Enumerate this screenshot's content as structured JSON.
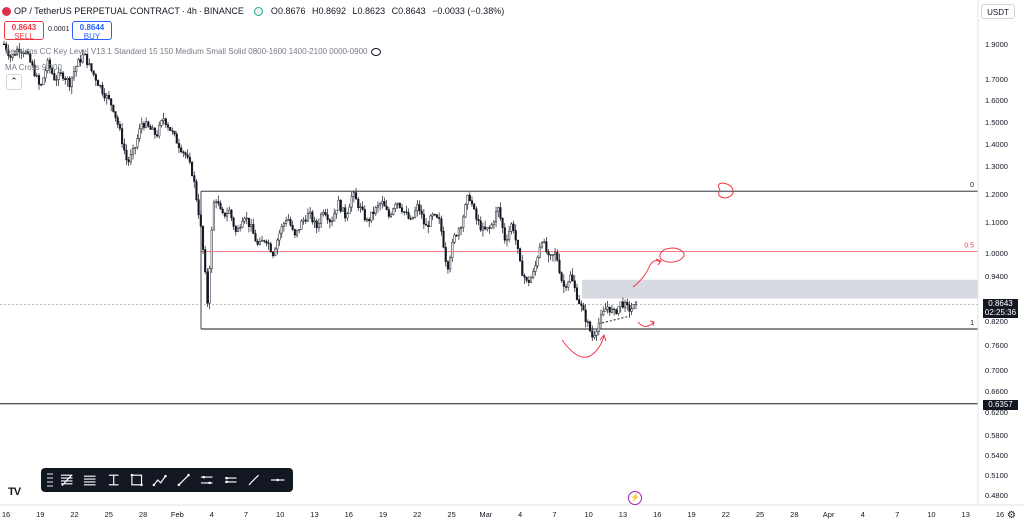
{
  "header": {
    "symbol": "OP / TetherUS PERPETUAL CONTRACT",
    "dot1": "·",
    "interval": "4h",
    "dot2": "·",
    "exchange": "BINANCE",
    "o_label": "O",
    "o": "0.8676",
    "h_label": "H",
    "h": "0.8692",
    "l_label": "L",
    "l": "0.8623",
    "c_label": "C",
    "c": "0.8643",
    "change": "−0.0033 (−0.38%)"
  },
  "trade": {
    "sell_price": "0.8643",
    "sell_label": "SELL",
    "spread": "0.0001",
    "buy_price": "0.8644",
    "buy_label": "BUY"
  },
  "indicators": {
    "line1": "Sessions CC Key Level V13.1 Standard 15 150 Medium Small Solid 0800-1600 1400-2100 0000-0900",
    "line2": "MA Cross 9 200"
  },
  "currency": "USDT",
  "last_price": {
    "value": "0.8643",
    "countdown": "02:25:36"
  },
  "marked_price": "0.6357",
  "colors": {
    "candle": "#131722",
    "fib_mid": "#f23645",
    "drawing": "#f23645",
    "zone": "#d1d4dc"
  },
  "chart_data": {
    "type": "candlestick",
    "title": "",
    "xlabel": "",
    "ylabel": "",
    "ylim": [
      0.46,
      2.0
    ],
    "y_ticks": [
      "1.9000",
      "1.7000",
      "1.6000",
      "1.5000",
      "1.4000",
      "1.3000",
      "1.2000",
      "1.1000",
      "1.0000",
      "0.9400",
      "0.8200",
      "0.7600",
      "0.7000",
      "0.6600",
      "0.6200",
      "0.5800",
      "0.5400",
      "0.5100",
      "0.4800"
    ],
    "y_tick_values": [
      1.9,
      1.7,
      1.6,
      1.5,
      1.4,
      1.3,
      1.2,
      1.1,
      1.0,
      0.94,
      0.82,
      0.76,
      0.7,
      0.66,
      0.62,
      0.58,
      0.54,
      0.51,
      0.48
    ],
    "x_ticks": [
      "16",
      "19",
      "22",
      "25",
      "28",
      "Feb",
      "4",
      "7",
      "10",
      "13",
      "16",
      "19",
      "22",
      "25",
      "Mar",
      "4",
      "7",
      "10",
      "13",
      "16",
      "19",
      "22",
      "25",
      "28",
      "Apr",
      "4",
      "7",
      "10",
      "13",
      "16"
    ],
    "close_path": [
      1.9,
      1.82,
      1.88,
      1.85,
      1.76,
      1.65,
      1.79,
      1.7,
      1.73,
      1.68,
      1.78,
      1.84,
      1.75,
      1.68,
      1.62,
      1.57,
      1.45,
      1.31,
      1.38,
      1.5,
      1.47,
      1.44,
      1.52,
      1.46,
      1.4,
      1.35,
      1.27,
      1.1,
      0.87,
      1.2,
      1.12,
      1.14,
      1.06,
      1.13,
      1.08,
      1.02,
      1.05,
      1.0,
      1.07,
      1.12,
      1.05,
      1.1,
      1.13,
      1.08,
      1.15,
      1.1,
      1.17,
      1.12,
      1.2,
      1.15,
      1.1,
      1.14,
      1.17,
      1.12,
      1.18,
      1.14,
      1.1,
      1.16,
      1.08,
      1.12,
      1.1,
      0.96,
      1.05,
      1.1,
      1.2,
      1.11,
      1.07,
      1.08,
      1.15,
      1.04,
      1.1,
      0.97,
      0.92,
      0.95,
      1.05,
      0.98,
      1.0,
      0.91,
      0.94,
      0.88,
      0.83,
      0.78,
      0.82,
      0.86,
      0.84,
      0.87,
      0.85,
      0.86
    ],
    "fib_levels": [
      {
        "label": "0",
        "value": 1.21
      },
      {
        "label": "0.5",
        "value": 1.005
      },
      {
        "label": "1",
        "value": 0.8
      }
    ],
    "zone": {
      "from": 0.88,
      "to": 0.93
    },
    "current_price": 0.8643,
    "horizontal_line": 0.6357,
    "grid": false,
    "legend": "none"
  }
}
